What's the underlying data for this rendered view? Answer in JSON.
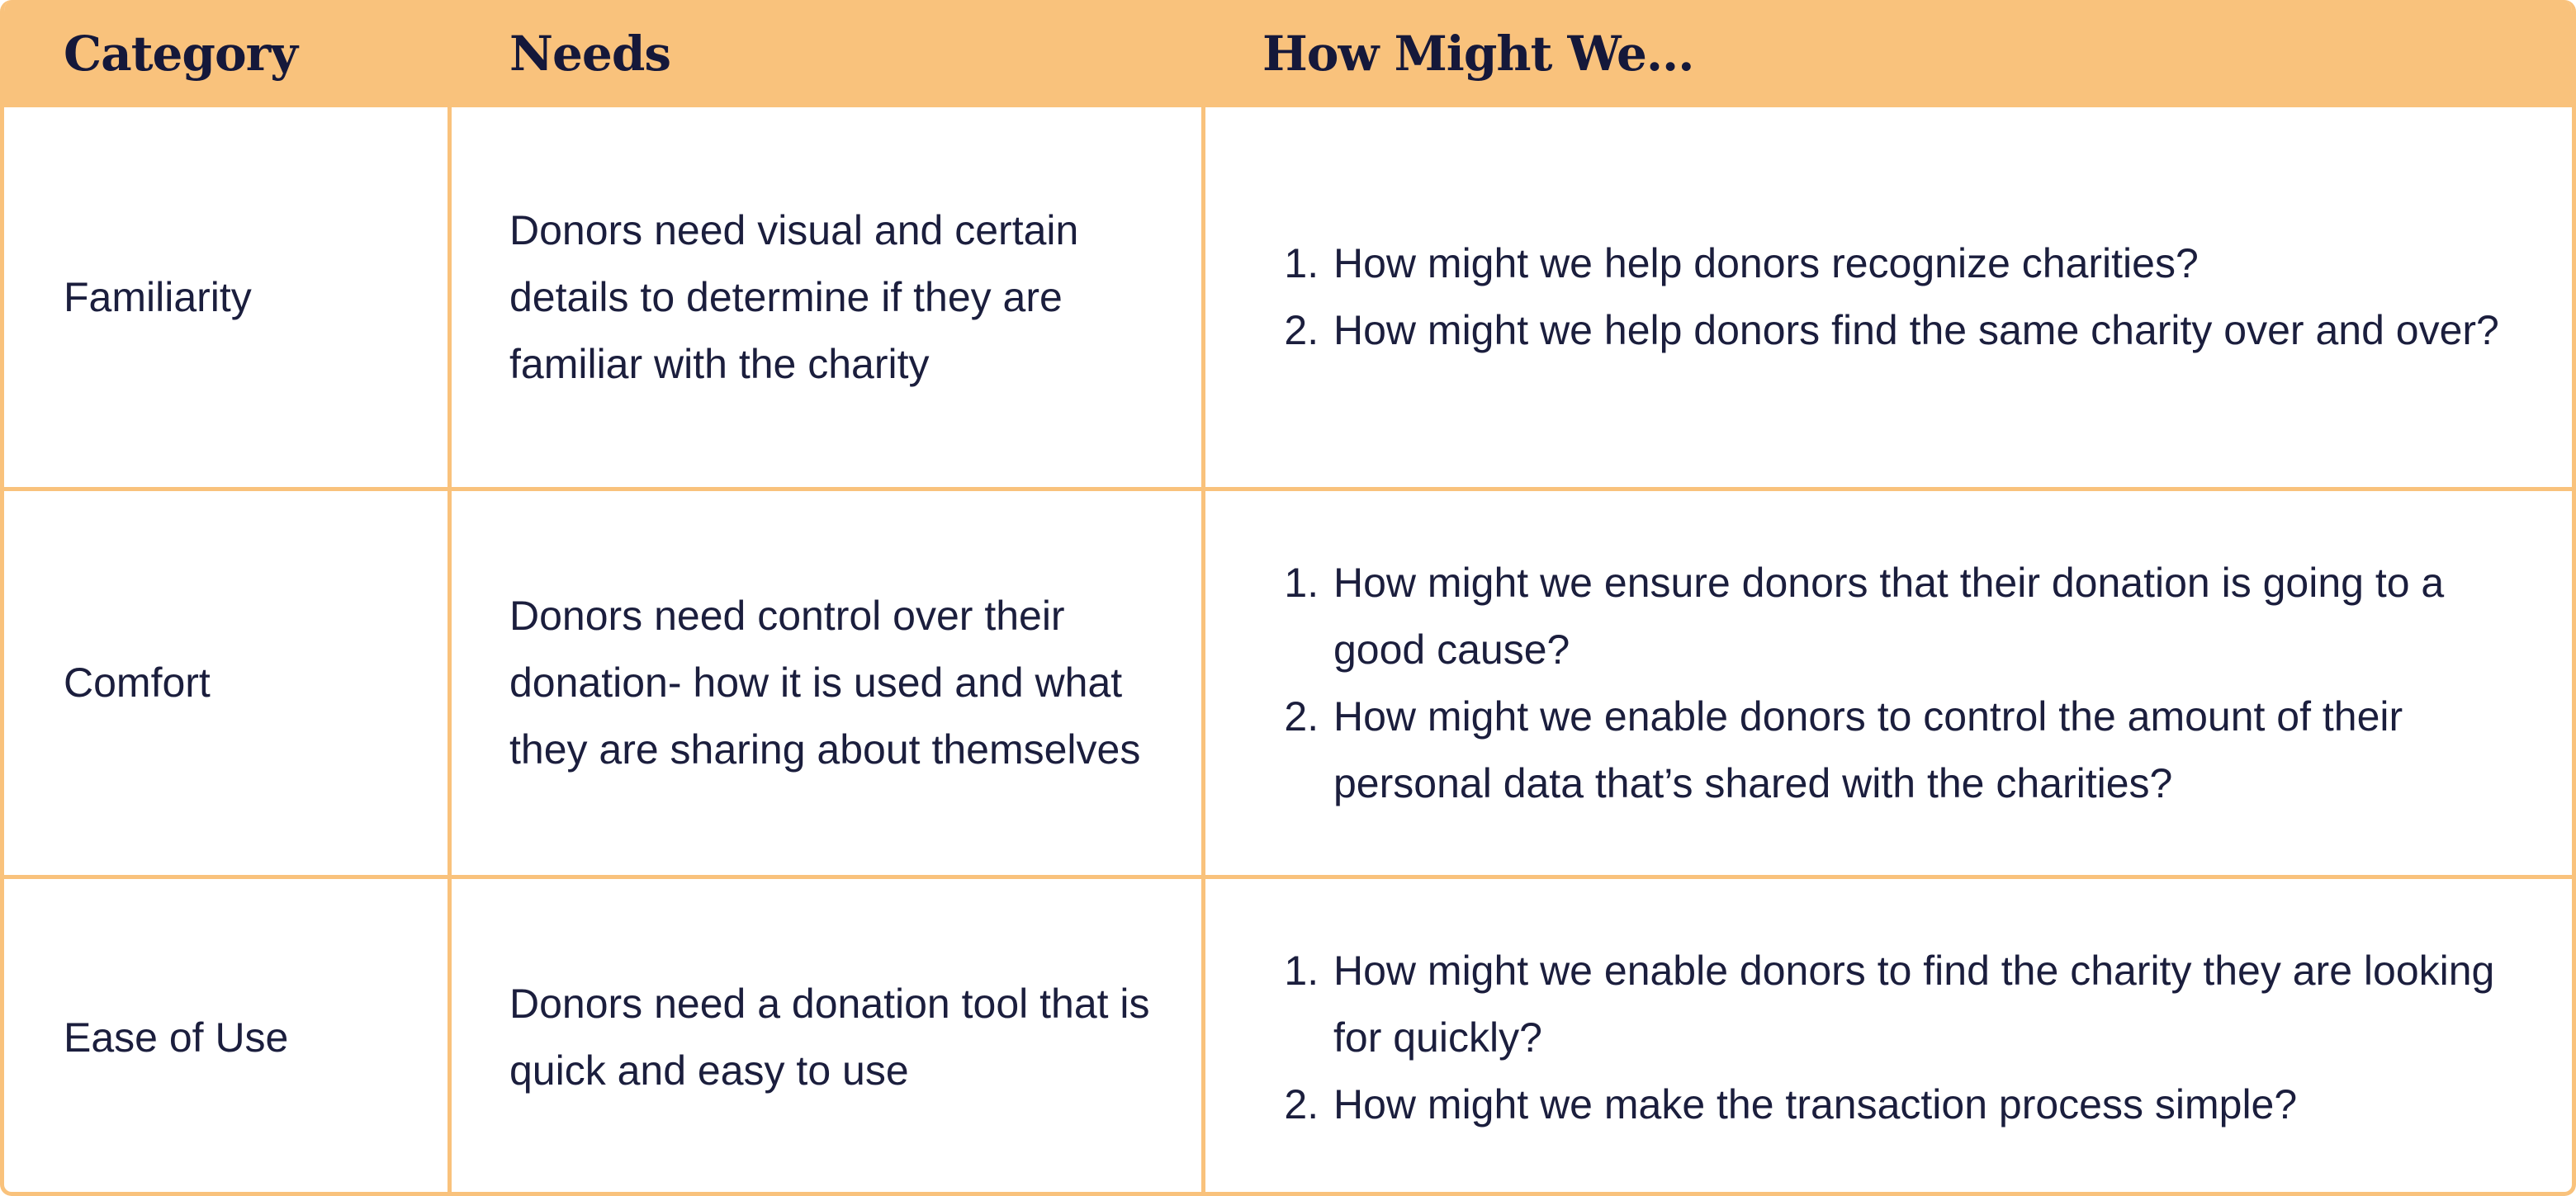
{
  "header": {
    "category": "Category",
    "needs": "Needs",
    "hmw": "How Might We..."
  },
  "rows": [
    {
      "category": "Familiarity",
      "need": "Donors need visual and certain details to determine if they are familiar with the charity",
      "hmw": [
        "How might we help donors recognize charities?",
        "How might we help donors find the same charity over and over?"
      ]
    },
    {
      "category": "Comfort",
      "need": "Donors need control over their donation- how it is used and what they are sharing about themselves",
      "hmw": [
        "How might we ensure donors that their donation is going to a good cause?",
        "How might we enable donors to control the amount of their personal data that’s shared with the charities?"
      ]
    },
    {
      "category": "Ease of Use",
      "need": "Donors need a donation tool that is quick and easy to use",
      "hmw": [
        "How might we enable donors to find the charity they are looking for quickly?",
        "How might we make the transaction process simple?"
      ]
    }
  ],
  "colors": {
    "header_bg": "#f9c27c",
    "border": "#f9c27c",
    "text": "#1b1e3d"
  }
}
